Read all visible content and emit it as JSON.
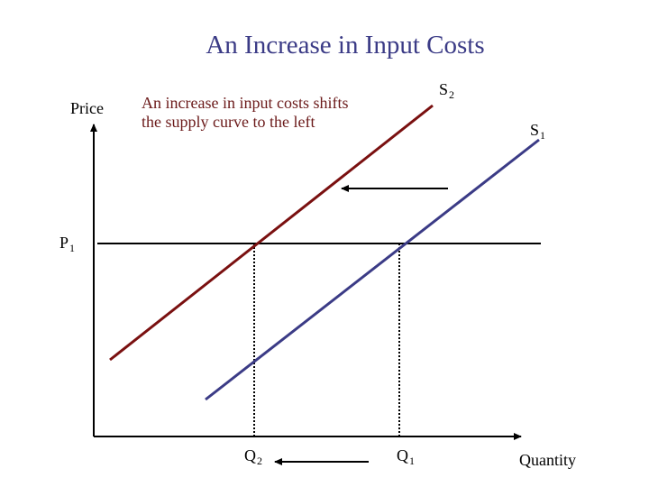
{
  "title": "An Increase in Input Costs",
  "annotation": "An increase in input costs shifts the supply curve to the left",
  "axes": {
    "y_label": "Price",
    "x_label": "Quantity"
  },
  "curves": {
    "s2": {
      "base": "S",
      "sub": "2",
      "color": "#7a1010"
    },
    "s1": {
      "base": "S",
      "sub": "1",
      "color": "#3b3b86"
    }
  },
  "price_level": {
    "base": "P",
    "sub": "1"
  },
  "quantities": {
    "q2": {
      "base": "Q",
      "sub": "2"
    },
    "q1": {
      "base": "Q",
      "sub": "1"
    }
  },
  "colors": {
    "title": "#3b3b86",
    "annotation": "#6b1a1a",
    "axes": "#000000"
  }
}
